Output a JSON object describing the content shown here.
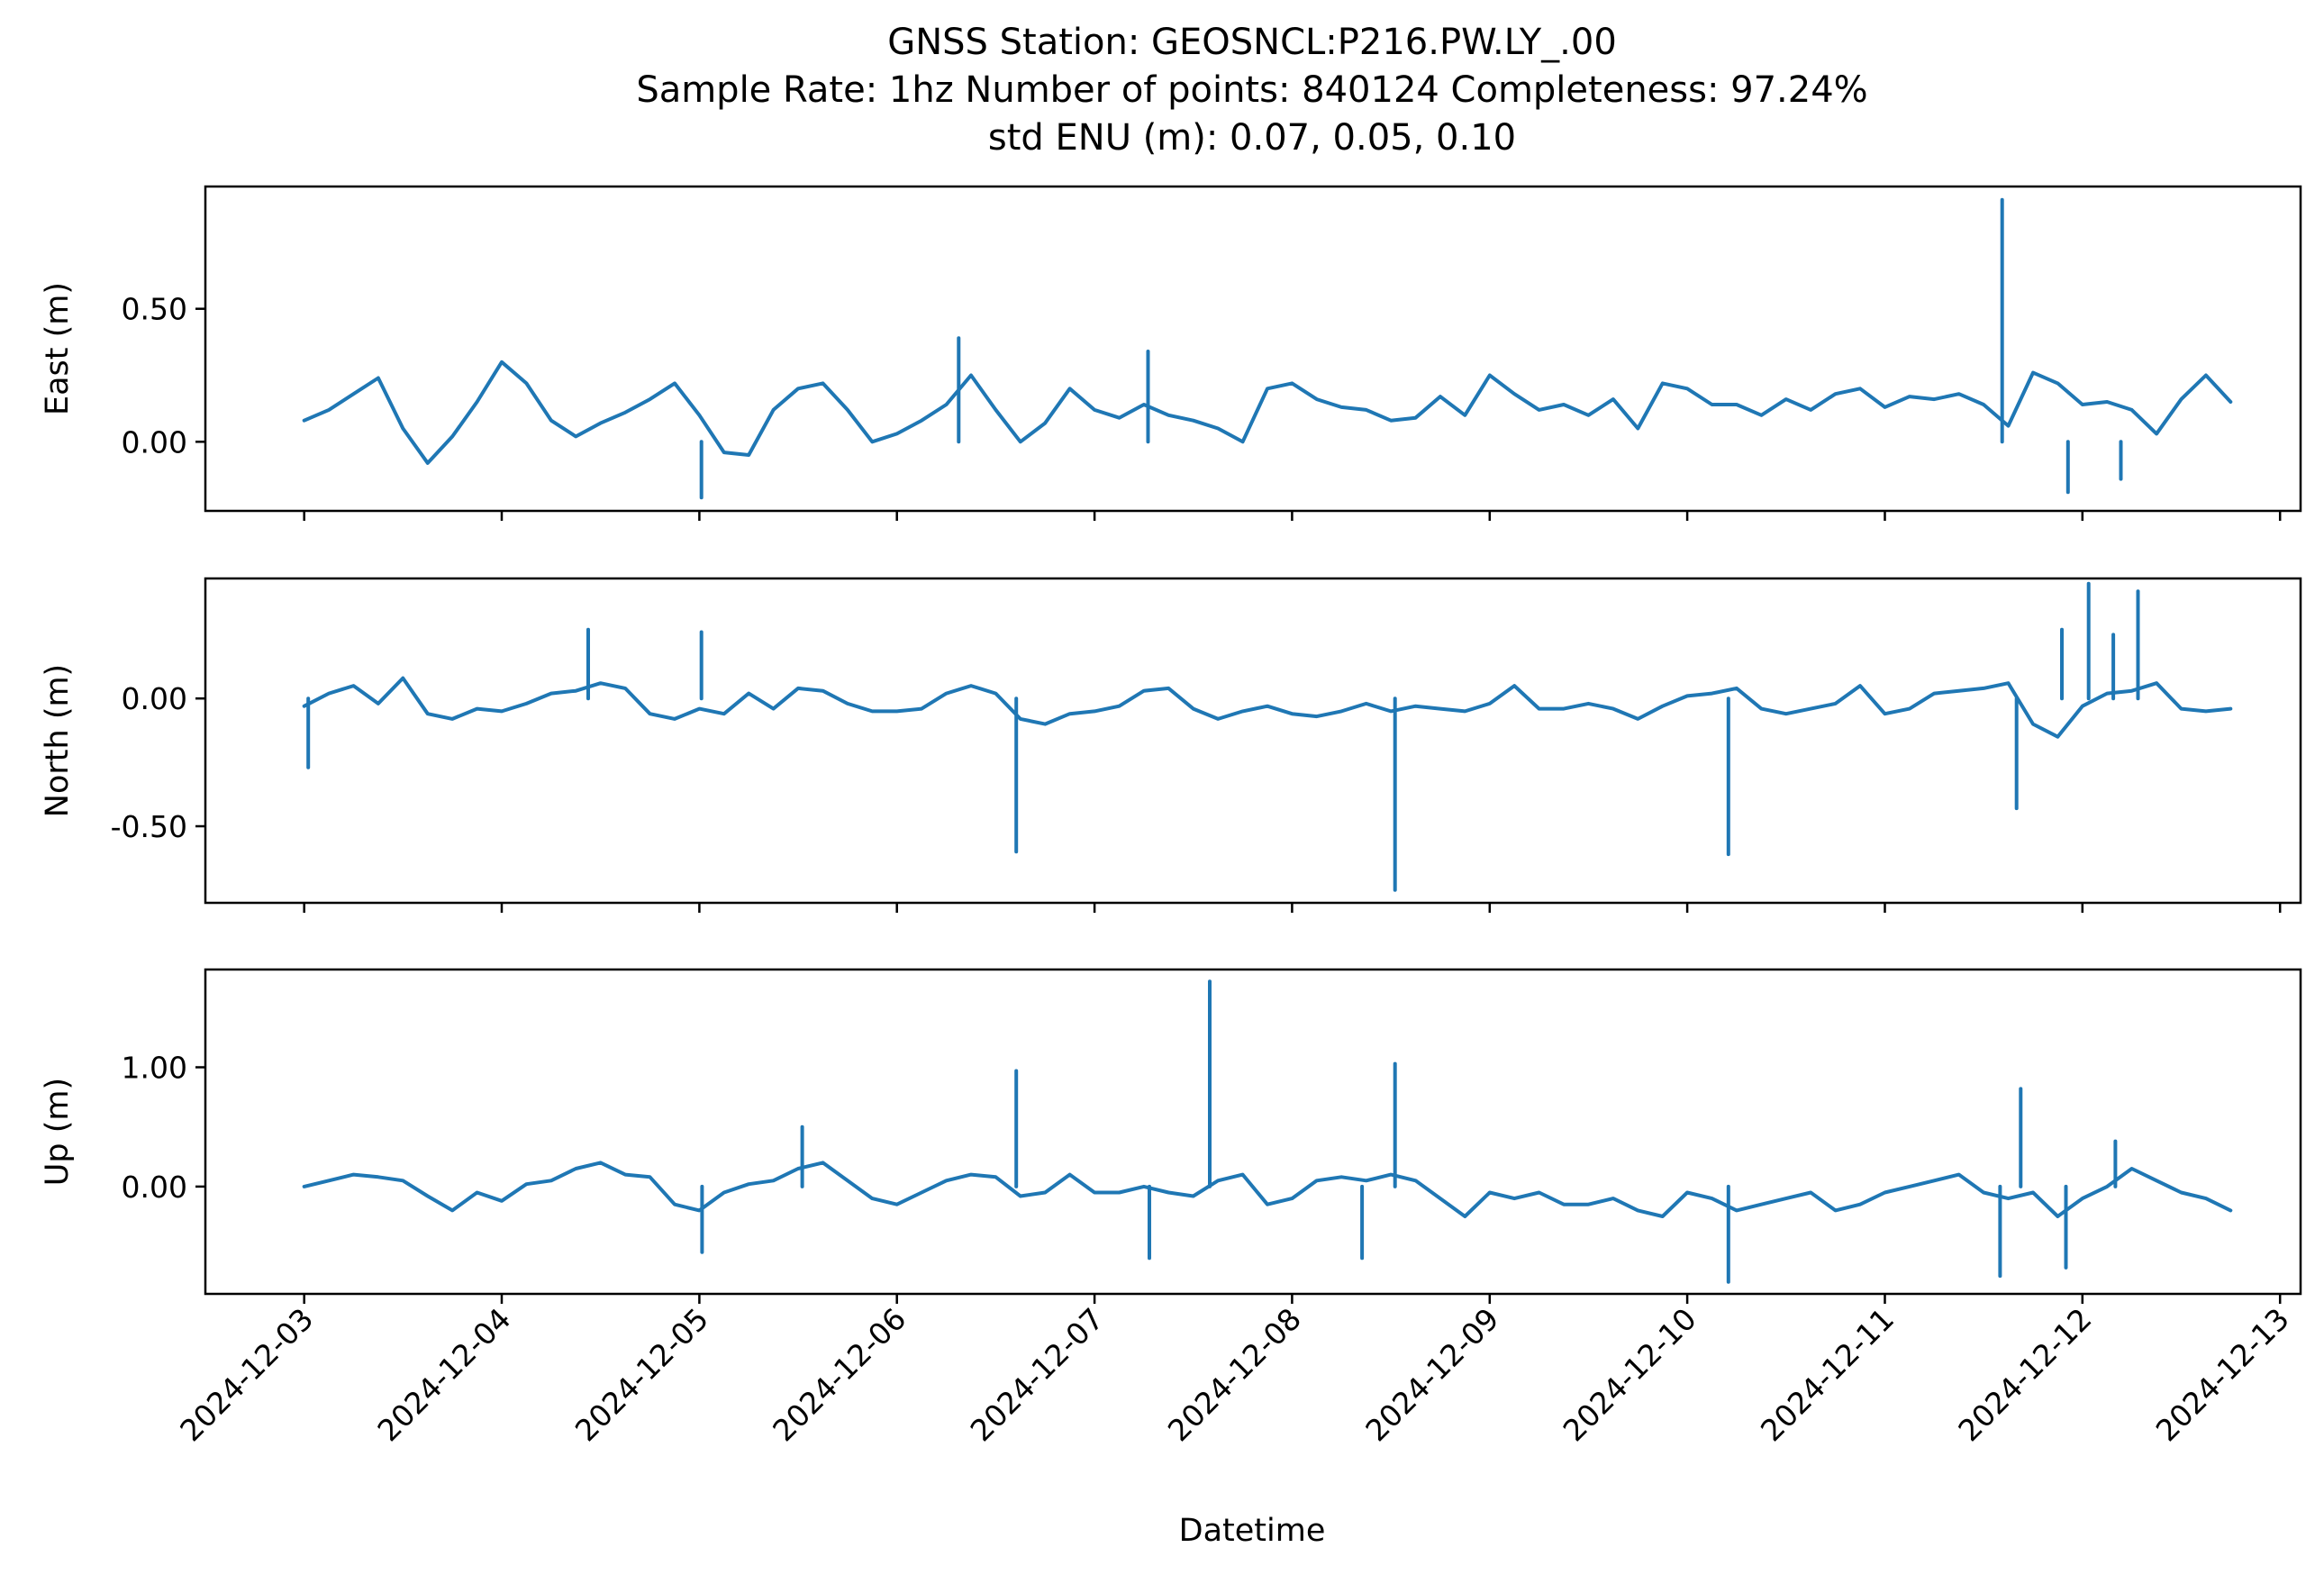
{
  "figure": {
    "title_lines": [
      "GNSS Station: GEOSNCL:P216.PW.LY_.00",
      "Sample Rate: 1hz   Number of points: 840124    Completeness:  97.24%",
      "std ENU (m):  0.07, 0.05, 0.10"
    ],
    "xlabel": "Datetime",
    "line_color": "#1f77b4"
  },
  "chart_data": [
    {
      "type": "line",
      "name": "east-panel",
      "ylabel": "East (m)",
      "ylim": [
        -0.26,
        0.96
      ],
      "yticks": [
        0.0,
        0.5
      ],
      "ytick_labels": [
        "0.00",
        "0.50"
      ],
      "xlim": [
        "2024-12-02 12:00",
        "2024-12-13 02:30"
      ],
      "xticks": [
        "2024-12-03",
        "2024-12-04",
        "2024-12-05",
        "2024-12-06",
        "2024-12-07",
        "2024-12-08",
        "2024-12-09",
        "2024-12-10",
        "2024-12-11",
        "2024-12-12",
        "2024-12-13"
      ],
      "x_tick_labels_shown": false,
      "grid": false,
      "series": [
        {
          "x": [
            "2024-12-03 00:00",
            "2024-12-03 03:00",
            "2024-12-03 06:00",
            "2024-12-03 09:00",
            "2024-12-03 12:00",
            "2024-12-03 15:00",
            "2024-12-03 18:00",
            "2024-12-03 21:00",
            "2024-12-04 00:00",
            "2024-12-04 03:00",
            "2024-12-04 06:00",
            "2024-12-04 09:00",
            "2024-12-04 12:00",
            "2024-12-04 15:00",
            "2024-12-04 18:00",
            "2024-12-04 21:00",
            "2024-12-05 00:00",
            "2024-12-05 03:00",
            "2024-12-05 06:00",
            "2024-12-05 09:00",
            "2024-12-05 12:00",
            "2024-12-05 15:00",
            "2024-12-05 18:00",
            "2024-12-05 21:00",
            "2024-12-06 00:00",
            "2024-12-06 03:00",
            "2024-12-06 06:00",
            "2024-12-06 09:00",
            "2024-12-06 12:00",
            "2024-12-06 15:00",
            "2024-12-06 18:00",
            "2024-12-06 21:00",
            "2024-12-07 00:00",
            "2024-12-07 03:00",
            "2024-12-07 06:00",
            "2024-12-07 09:00",
            "2024-12-07 12:00",
            "2024-12-07 15:00",
            "2024-12-07 18:00",
            "2024-12-07 21:00",
            "2024-12-08 00:00",
            "2024-12-08 03:00",
            "2024-12-08 06:00",
            "2024-12-08 09:00",
            "2024-12-08 12:00",
            "2024-12-08 15:00",
            "2024-12-08 18:00",
            "2024-12-08 21:00",
            "2024-12-09 00:00",
            "2024-12-09 03:00",
            "2024-12-09 06:00",
            "2024-12-09 09:00",
            "2024-12-09 12:00",
            "2024-12-09 15:00",
            "2024-12-09 18:00",
            "2024-12-09 21:00",
            "2024-12-10 00:00",
            "2024-12-10 03:00",
            "2024-12-10 06:00",
            "2024-12-10 09:00",
            "2024-12-10 12:00",
            "2024-12-10 15:00",
            "2024-12-10 18:00",
            "2024-12-10 21:00",
            "2024-12-11 00:00",
            "2024-12-11 03:00",
            "2024-12-11 06:00",
            "2024-12-11 09:00",
            "2024-12-11 12:00",
            "2024-12-11 15:00",
            "2024-12-11 18:00",
            "2024-12-11 21:00",
            "2024-12-12 00:00",
            "2024-12-12 03:00",
            "2024-12-12 06:00",
            "2024-12-12 09:00",
            "2024-12-12 12:00",
            "2024-12-12 15:00",
            "2024-12-12 18:00"
          ],
          "y": [
            0.08,
            0.12,
            0.18,
            0.24,
            0.05,
            -0.08,
            0.02,
            0.15,
            0.3,
            0.22,
            0.08,
            0.02,
            0.07,
            0.11,
            0.16,
            0.22,
            0.1,
            -0.04,
            -0.05,
            0.12,
            0.2,
            0.22,
            0.12,
            0.0,
            0.03,
            0.08,
            0.14,
            0.25,
            0.12,
            0.0,
            0.07,
            0.2,
            0.12,
            0.09,
            0.14,
            0.1,
            0.08,
            0.05,
            0.0,
            0.2,
            0.22,
            0.16,
            0.13,
            0.12,
            0.08,
            0.09,
            0.17,
            0.1,
            0.25,
            0.18,
            0.12,
            0.14,
            0.1,
            0.16,
            0.05,
            0.22,
            0.2,
            0.14,
            0.14,
            0.1,
            0.16,
            0.12,
            0.18,
            0.2,
            0.13,
            0.17,
            0.16,
            0.18,
            0.14,
            0.06,
            0.26,
            0.22,
            0.14,
            0.15,
            0.12,
            0.03,
            0.16,
            0.25,
            0.15
          ]
        }
      ],
      "spikes": [
        {
          "x": "2024-12-11 14:15",
          "y": 0.91
        },
        {
          "x": "2024-12-05 00:15",
          "y": -0.21
        },
        {
          "x": "2024-12-11 22:15",
          "y": -0.19
        },
        {
          "x": "2024-12-12 04:40",
          "y": -0.14
        },
        {
          "x": "2024-12-06 07:30",
          "y": 0.39
        },
        {
          "x": "2024-12-07 06:30",
          "y": 0.34
        }
      ]
    },
    {
      "type": "line",
      "name": "north-panel",
      "ylabel": "North (m)",
      "ylim": [
        -0.8,
        0.47
      ],
      "yticks": [
        -0.5,
        0.0
      ],
      "ytick_labels": [
        "-0.50",
        "0.00"
      ],
      "xlim": [
        "2024-12-02 12:00",
        "2024-12-13 02:30"
      ],
      "xticks": [
        "2024-12-03",
        "2024-12-04",
        "2024-12-05",
        "2024-12-06",
        "2024-12-07",
        "2024-12-08",
        "2024-12-09",
        "2024-12-10",
        "2024-12-11",
        "2024-12-12",
        "2024-12-13"
      ],
      "x_tick_labels_shown": false,
      "grid": false,
      "series": [
        {
          "x": [
            "2024-12-03 00:00",
            "2024-12-03 03:00",
            "2024-12-03 06:00",
            "2024-12-03 09:00",
            "2024-12-03 12:00",
            "2024-12-03 15:00",
            "2024-12-03 18:00",
            "2024-12-03 21:00",
            "2024-12-04 00:00",
            "2024-12-04 03:00",
            "2024-12-04 06:00",
            "2024-12-04 09:00",
            "2024-12-04 12:00",
            "2024-12-04 15:00",
            "2024-12-04 18:00",
            "2024-12-04 21:00",
            "2024-12-05 00:00",
            "2024-12-05 03:00",
            "2024-12-05 06:00",
            "2024-12-05 09:00",
            "2024-12-05 12:00",
            "2024-12-05 15:00",
            "2024-12-05 18:00",
            "2024-12-05 21:00",
            "2024-12-06 00:00",
            "2024-12-06 03:00",
            "2024-12-06 06:00",
            "2024-12-06 09:00",
            "2024-12-06 12:00",
            "2024-12-06 15:00",
            "2024-12-06 18:00",
            "2024-12-06 21:00",
            "2024-12-07 00:00",
            "2024-12-07 03:00",
            "2024-12-07 06:00",
            "2024-12-07 09:00",
            "2024-12-07 12:00",
            "2024-12-07 15:00",
            "2024-12-07 18:00",
            "2024-12-07 21:00",
            "2024-12-08 00:00",
            "2024-12-08 03:00",
            "2024-12-08 06:00",
            "2024-12-08 09:00",
            "2024-12-08 12:00",
            "2024-12-08 15:00",
            "2024-12-08 18:00",
            "2024-12-08 21:00",
            "2024-12-09 00:00",
            "2024-12-09 03:00",
            "2024-12-09 06:00",
            "2024-12-09 09:00",
            "2024-12-09 12:00",
            "2024-12-09 15:00",
            "2024-12-09 18:00",
            "2024-12-09 21:00",
            "2024-12-10 00:00",
            "2024-12-10 03:00",
            "2024-12-10 06:00",
            "2024-12-10 09:00",
            "2024-12-10 12:00",
            "2024-12-10 15:00",
            "2024-12-10 18:00",
            "2024-12-10 21:00",
            "2024-12-11 00:00",
            "2024-12-11 03:00",
            "2024-12-11 06:00",
            "2024-12-11 09:00",
            "2024-12-11 12:00",
            "2024-12-11 15:00",
            "2024-12-11 18:00",
            "2024-12-11 21:00",
            "2024-12-12 00:00",
            "2024-12-12 03:00",
            "2024-12-12 06:00",
            "2024-12-12 09:00",
            "2024-12-12 12:00",
            "2024-12-12 15:00",
            "2024-12-12 18:00"
          ],
          "y": [
            -0.03,
            0.02,
            0.05,
            -0.02,
            0.08,
            -0.06,
            -0.08,
            -0.04,
            -0.05,
            -0.02,
            0.02,
            0.03,
            0.06,
            0.04,
            -0.06,
            -0.08,
            -0.04,
            -0.06,
            0.02,
            -0.04,
            0.04,
            0.03,
            -0.02,
            -0.05,
            -0.05,
            -0.04,
            0.02,
            0.05,
            0.02,
            -0.08,
            -0.1,
            -0.06,
            -0.05,
            -0.03,
            0.03,
            0.04,
            -0.04,
            -0.08,
            -0.05,
            -0.03,
            -0.06,
            -0.07,
            -0.05,
            -0.02,
            -0.05,
            -0.03,
            -0.04,
            -0.05,
            -0.02,
            0.05,
            -0.04,
            -0.04,
            -0.02,
            -0.04,
            -0.08,
            -0.03,
            0.01,
            0.02,
            0.04,
            -0.04,
            -0.06,
            -0.04,
            -0.02,
            0.05,
            -0.06,
            -0.04,
            0.02,
            0.03,
            0.04,
            0.06,
            -0.1,
            -0.15,
            -0.03,
            0.02,
            0.03,
            0.06,
            -0.04,
            -0.05,
            -0.04
          ]
        }
      ],
      "spikes": [
        {
          "x": "2024-12-08 12:30",
          "y": -0.75
        },
        {
          "x": "2024-12-06 14:30",
          "y": -0.6
        },
        {
          "x": "2024-12-10 05:00",
          "y": -0.61
        },
        {
          "x": "2024-12-12 00:45",
          "y": 0.45
        },
        {
          "x": "2024-12-12 06:45",
          "y": 0.42
        },
        {
          "x": "2024-12-12 03:45",
          "y": 0.25
        },
        {
          "x": "2024-12-11 21:30",
          "y": 0.27
        },
        {
          "x": "2024-12-04 10:30",
          "y": 0.27
        },
        {
          "x": "2024-12-05 00:15",
          "y": 0.26
        },
        {
          "x": "2024-12-11 16:00",
          "y": -0.43
        },
        {
          "x": "2024-12-03 00:30",
          "y": -0.27
        }
      ]
    },
    {
      "type": "line",
      "name": "up-panel",
      "ylabel": "Up (m)",
      "ylim": [
        -0.9,
        1.82
      ],
      "yticks": [
        0.0,
        1.0
      ],
      "ytick_labels": [
        "0.00",
        "1.00"
      ],
      "xlim": [
        "2024-12-02 12:00",
        "2024-12-13 02:30"
      ],
      "xticks": [
        "2024-12-03",
        "2024-12-04",
        "2024-12-05",
        "2024-12-06",
        "2024-12-07",
        "2024-12-08",
        "2024-12-09",
        "2024-12-10",
        "2024-12-11",
        "2024-12-12",
        "2024-12-13"
      ],
      "xtick_labels": [
        "2024-12-03",
        "2024-12-04",
        "2024-12-05",
        "2024-12-06",
        "2024-12-07",
        "2024-12-08",
        "2024-12-09",
        "2024-12-10",
        "2024-12-11",
        "2024-12-12",
        "2024-12-13"
      ],
      "grid": false,
      "series": [
        {
          "x": [
            "2024-12-03 00:00",
            "2024-12-03 03:00",
            "2024-12-03 06:00",
            "2024-12-03 09:00",
            "2024-12-03 12:00",
            "2024-12-03 15:00",
            "2024-12-03 18:00",
            "2024-12-03 21:00",
            "2024-12-04 00:00",
            "2024-12-04 03:00",
            "2024-12-04 06:00",
            "2024-12-04 09:00",
            "2024-12-04 12:00",
            "2024-12-04 15:00",
            "2024-12-04 18:00",
            "2024-12-04 21:00",
            "2024-12-05 00:00",
            "2024-12-05 03:00",
            "2024-12-05 06:00",
            "2024-12-05 09:00",
            "2024-12-05 12:00",
            "2024-12-05 15:00",
            "2024-12-05 18:00",
            "2024-12-05 21:00",
            "2024-12-06 00:00",
            "2024-12-06 03:00",
            "2024-12-06 06:00",
            "2024-12-06 09:00",
            "2024-12-06 12:00",
            "2024-12-06 15:00",
            "2024-12-06 18:00",
            "2024-12-06 21:00",
            "2024-12-07 00:00",
            "2024-12-07 03:00",
            "2024-12-07 06:00",
            "2024-12-07 09:00",
            "2024-12-07 12:00",
            "2024-12-07 15:00",
            "2024-12-07 18:00",
            "2024-12-07 21:00",
            "2024-12-08 00:00",
            "2024-12-08 03:00",
            "2024-12-08 06:00",
            "2024-12-08 09:00",
            "2024-12-08 12:00",
            "2024-12-08 15:00",
            "2024-12-08 18:00",
            "2024-12-08 21:00",
            "2024-12-09 00:00",
            "2024-12-09 03:00",
            "2024-12-09 06:00",
            "2024-12-09 09:00",
            "2024-12-09 12:00",
            "2024-12-09 15:00",
            "2024-12-09 18:00",
            "2024-12-09 21:00",
            "2024-12-10 00:00",
            "2024-12-10 03:00",
            "2024-12-10 06:00",
            "2024-12-10 09:00",
            "2024-12-10 12:00",
            "2024-12-10 15:00",
            "2024-12-10 18:00",
            "2024-12-10 21:00",
            "2024-12-11 00:00",
            "2024-12-11 03:00",
            "2024-12-11 06:00",
            "2024-12-11 09:00",
            "2024-12-11 12:00",
            "2024-12-11 15:00",
            "2024-12-11 18:00",
            "2024-12-11 21:00",
            "2024-12-12 00:00",
            "2024-12-12 03:00",
            "2024-12-12 06:00",
            "2024-12-12 09:00",
            "2024-12-12 12:00",
            "2024-12-12 15:00",
            "2024-12-12 18:00"
          ],
          "y": [
            0.0,
            0.05,
            0.1,
            0.08,
            0.05,
            -0.08,
            -0.2,
            -0.05,
            -0.12,
            0.02,
            0.05,
            0.15,
            0.2,
            0.1,
            0.08,
            -0.15,
            -0.2,
            -0.05,
            0.02,
            0.05,
            0.15,
            0.2,
            0.05,
            -0.1,
            -0.15,
            -0.05,
            0.05,
            0.1,
            0.08,
            -0.08,
            -0.05,
            0.1,
            -0.05,
            -0.05,
            0.0,
            -0.05,
            -0.08,
            0.05,
            0.1,
            -0.15,
            -0.1,
            0.05,
            0.08,
            0.05,
            0.1,
            0.05,
            -0.1,
            -0.25,
            -0.05,
            -0.1,
            -0.05,
            -0.15,
            -0.15,
            -0.1,
            -0.2,
            -0.25,
            -0.05,
            -0.1,
            -0.2,
            -0.15,
            -0.1,
            -0.05,
            -0.2,
            -0.15,
            -0.05,
            0.0,
            0.05,
            0.1,
            -0.05,
            -0.1,
            -0.05,
            -0.25,
            -0.1,
            0.0,
            0.15,
            0.05,
            -0.05,
            -0.1,
            -0.2
          ]
        }
      ],
      "spikes": [
        {
          "x": "2024-12-07 14:00",
          "y": 1.72
        },
        {
          "x": "2024-12-08 12:30",
          "y": 1.03
        },
        {
          "x": "2024-12-06 14:30",
          "y": 0.97
        },
        {
          "x": "2024-12-11 16:30",
          "y": 0.82
        },
        {
          "x": "2024-12-10 05:00",
          "y": -0.8
        },
        {
          "x": "2024-12-11 14:00",
          "y": -0.75
        },
        {
          "x": "2024-12-11 22:00",
          "y": -0.68
        },
        {
          "x": "2024-12-07 06:40",
          "y": -0.6
        },
        {
          "x": "2024-12-08 08:30",
          "y": -0.6
        },
        {
          "x": "2024-12-05 00:20",
          "y": -0.55
        },
        {
          "x": "2024-12-05 12:30",
          "y": 0.5
        },
        {
          "x": "2024-12-12 04:00",
          "y": 0.38
        }
      ]
    }
  ]
}
